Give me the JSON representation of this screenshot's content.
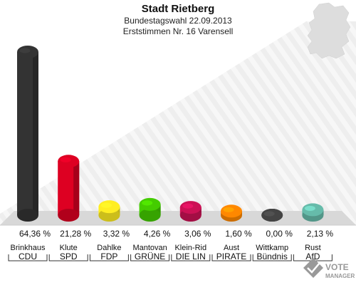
{
  "chart_data": {
    "type": "bar",
    "title": "Stadt Rietberg",
    "subtitle": "Bundestagswahl 22.09.2013",
    "subtitle2": "Erststimmen Nr. 16 Varensell",
    "ylim": [
      0,
      70
    ],
    "grid": false,
    "legend": "none",
    "categories": [
      {
        "candidate": "Brinkhaus",
        "party": "CDU"
      },
      {
        "candidate": "Klute",
        "party": "SPD"
      },
      {
        "candidate": "Dahlke",
        "party": "FDP"
      },
      {
        "candidate": "Mantovan",
        "party": "GRÜNE"
      },
      {
        "candidate": "Klein-Rid",
        "party": "DIE LIN"
      },
      {
        "candidate": "Aust",
        "party": "PIRATE"
      },
      {
        "candidate": "Wittkamp",
        "party": "Bündnis"
      },
      {
        "candidate": "Rust",
        "party": "AfD"
      }
    ],
    "values": [
      64.36,
      21.28,
      3.32,
      4.26,
      3.06,
      1.6,
      0.0,
      2.13
    ],
    "value_labels": [
      "64,36 %",
      "21,28 %",
      "3,32 %",
      "4,26 %",
      "3,06 %",
      "1,60 %",
      "0,00 %",
      "2,13 %"
    ],
    "colors": [
      "#333333",
      "#dd0022",
      "#ffee22",
      "#44cc00",
      "#cc1155",
      "#ff8800",
      "#444444",
      "#66bbaa"
    ]
  },
  "watermark": {
    "line1": "VOTE",
    "line2": "MANAGER"
  }
}
